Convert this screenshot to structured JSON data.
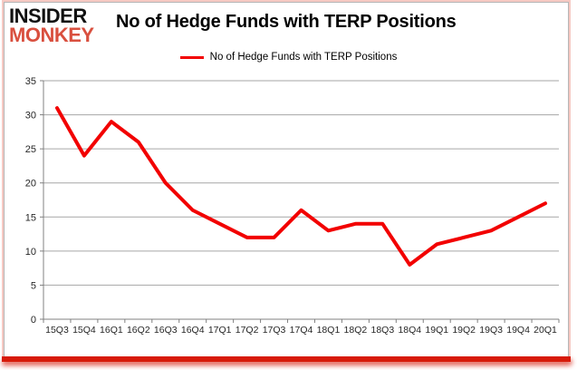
{
  "logo": {
    "line1": "INSIDER",
    "line2": "MONKEY"
  },
  "title": "No of Hedge Funds with TERP Positions",
  "legend": {
    "label": "No of Hedge Funds with TERP Positions"
  },
  "chart_data": {
    "type": "line",
    "title": "No of Hedge Funds with TERP Positions",
    "categories": [
      "15Q3",
      "15Q4",
      "16Q1",
      "16Q2",
      "16Q3",
      "16Q4",
      "17Q1",
      "17Q2",
      "17Q3",
      "17Q4",
      "18Q1",
      "18Q2",
      "18Q3",
      "18Q4",
      "19Q1",
      "19Q2",
      "19Q3",
      "19Q4",
      "20Q1"
    ],
    "values": [
      31,
      24,
      29,
      26,
      20,
      16,
      14,
      12,
      12,
      16,
      13,
      14,
      14,
      8,
      11,
      12,
      13,
      15,
      17
    ],
    "xlabel": "",
    "ylabel": "",
    "ylim": [
      0,
      35
    ],
    "y_ticks": [
      0,
      5,
      10,
      15,
      20,
      25,
      30,
      35
    ],
    "grid": true,
    "legend_position": "top-center",
    "line_color": "#f20000",
    "grid_color": "#a6a6a6",
    "axis_color": "#808080",
    "tick_label_color": "#262626"
  },
  "colors": {
    "logo_red": "#d9503f",
    "frame_pink": "#f6c9c3",
    "frame_bottom_red": "#d71a09",
    "border_gray": "#b5b5b5"
  }
}
